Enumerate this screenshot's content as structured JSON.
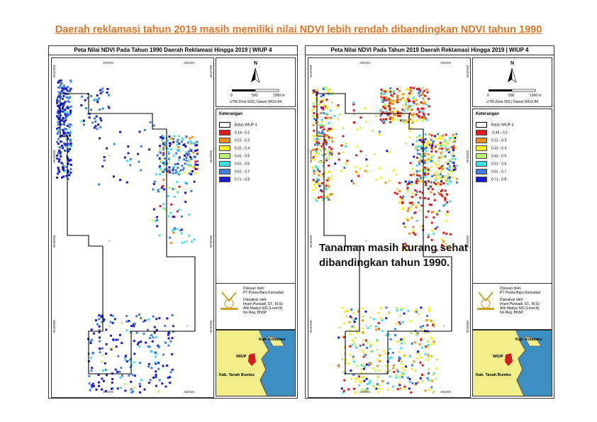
{
  "headline": "Daerah reklamasi tahun 2019 masih memiliki nilai NDVI lebih rendah dibandingkan NDVI tahun 1990",
  "overlay_note": {
    "line1": "Tanaman masih kurang sehat",
    "line2": "dibandingkan tahun 1990."
  },
  "colors": {
    "headline": "#e3762a",
    "boundary": "#000000",
    "inset_land": "#f2ee8a",
    "inset_sea": "#3b8fc2",
    "wiup_red": "#d11d1d"
  },
  "panels": [
    {
      "title": "Peta Nilai NDVI Pada Tahun 1990 Daerah Reklamasi Hingga 2019 | WIUP 4",
      "year": "1990"
    },
    {
      "title": "Peta Nilai NDVI Pada Tahun 2019 Daerah Reklamasi Hingga 2019 | WIUP 4",
      "year": "2019"
    }
  ],
  "axis_ticks": {
    "x_top": [
      "390000",
      "392000"
    ],
    "x_bottom": [
      "390000",
      "392000"
    ],
    "y": [
      "9642000",
      "9640000",
      "9638000",
      "9636000"
    ]
  },
  "north": {
    "letter": "N",
    "scale_labels": [
      "0",
      "500",
      "1000 m"
    ],
    "projection": "UTM Zone 50S | Datum WGS 84"
  },
  "legend_title": "Keterangan",
  "legend_1990": [
    {
      "label": "Batas WIUP 4",
      "color": "#ffffff"
    },
    {
      "label": "0.14 - 0.2",
      "color": "#e31a1c"
    },
    {
      "label": "0.21 - 0.3",
      "color": "#f28c1e"
    },
    {
      "label": "0.31 - 0.4",
      "color": "#f5ee2c"
    },
    {
      "label": "0.41 - 0.5",
      "color": "#b9ef74"
    },
    {
      "label": "0.51 - 0.6",
      "color": "#3fe0e8"
    },
    {
      "label": "0.61 - 0.7",
      "color": "#3f7fe0"
    },
    {
      "label": "0.71 - 0.8",
      "color": "#1a1ad1"
    }
  ],
  "legend_2019": [
    {
      "label": "Batas WIUP 4",
      "color": "#ffffff"
    },
    {
      "label": "-0.45 - 0.2",
      "color": "#e31a1c"
    },
    {
      "label": "0.21 - 0.3",
      "color": "#f28c1e"
    },
    {
      "label": "0.31 - 0.4",
      "color": "#f5ee2c"
    },
    {
      "label": "0.41 - 0.5",
      "color": "#b9ef74"
    },
    {
      "label": "0.51 - 0.6",
      "color": "#3fe0e8"
    },
    {
      "label": "0.61 - 0.7",
      "color": "#3f7fe0"
    },
    {
      "label": "0.71 - 0.8",
      "color": "#1a1ad1"
    }
  ],
  "credits": {
    "prepared_label": "Disusun oleh:",
    "prepared_by": "PT Purwa Bara Konsultan",
    "analyzed_label": "Dianalisis oleh:",
    "analyst": "Imam Purwadi, ST., M.Sc",
    "role": "Ahli Madya SIG (Level 8)",
    "reg": "No Reg. BNSP"
  },
  "inset": {
    "kotabaru": "Kab. Kotabaru",
    "wiup": "WIUP",
    "tanah_bumbu": "Kab. Tanah Bumbu"
  }
}
